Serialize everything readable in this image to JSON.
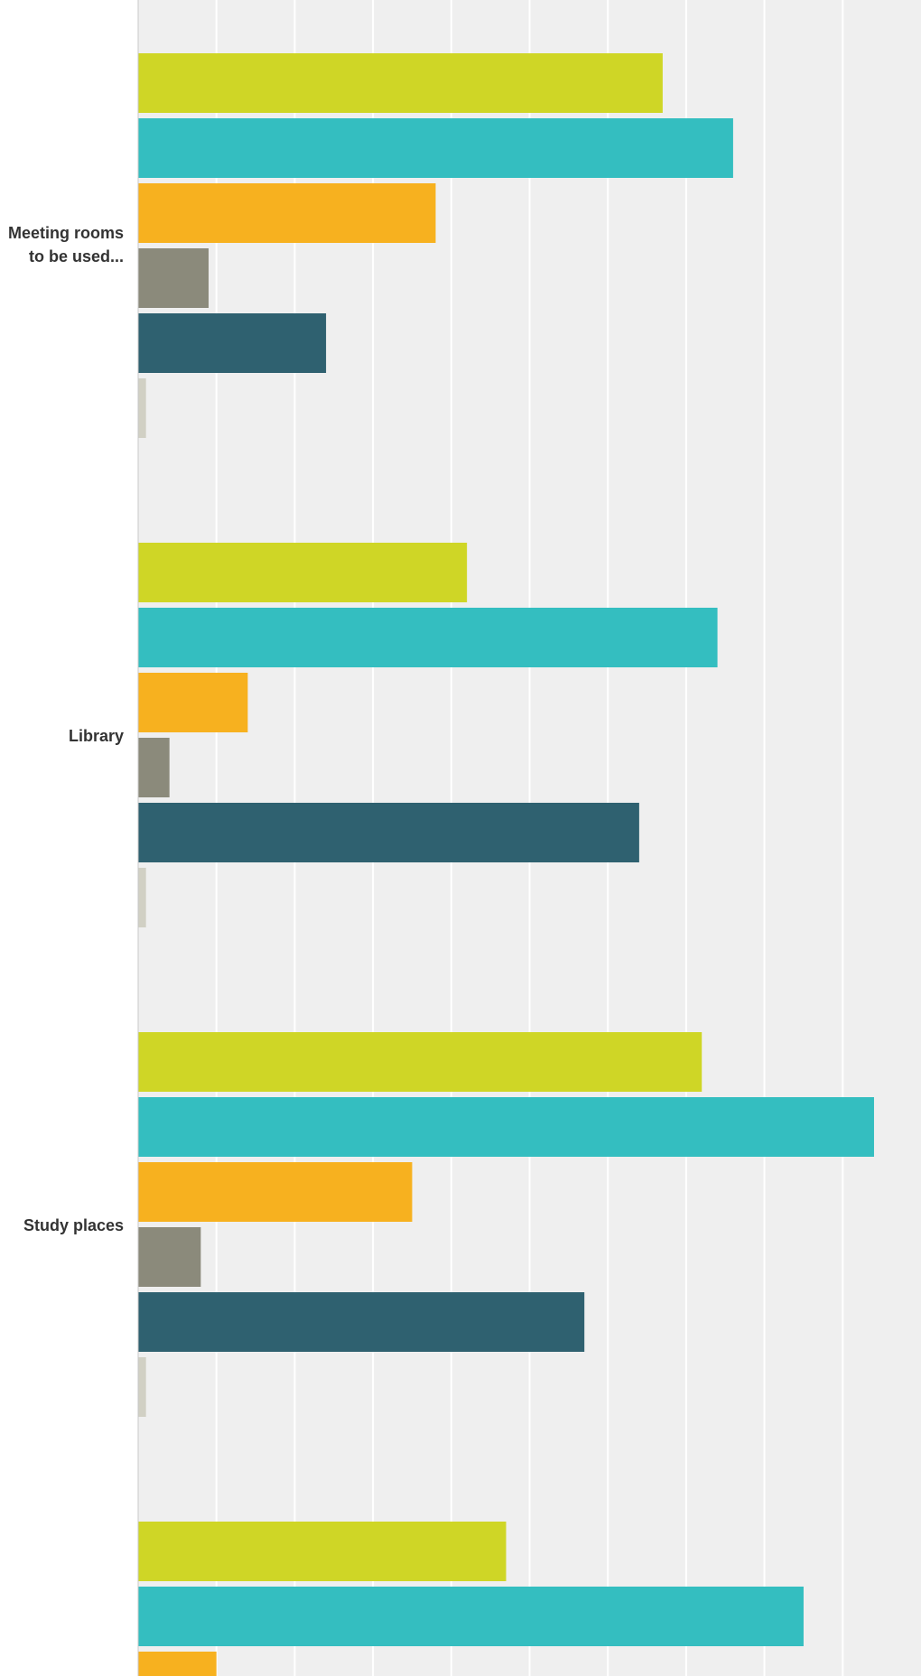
{
  "chart_data": {
    "type": "bar",
    "orientation": "horizontal",
    "categories": [
      "Meeting rooms to be used...",
      "Library",
      "Study places",
      ""
    ],
    "category_lines": [
      [
        "Meeting rooms",
        "to be used..."
      ],
      [
        "Library"
      ],
      [
        "Study places"
      ],
      [
        ""
      ]
    ],
    "series": [
      {
        "values": [
          67,
          42,
          72,
          47
        ],
        "color": "#cfd626"
      },
      {
        "values": [
          76,
          74,
          94,
          85
        ],
        "color": "#34bec0"
      },
      {
        "values": [
          38,
          14,
          35,
          10
        ],
        "color": "#f7b11f"
      },
      {
        "values": [
          9,
          4,
          8,
          null
        ],
        "color": "#8b8a7b"
      },
      {
        "values": [
          24,
          64,
          57,
          null
        ],
        "color": "#2f6170"
      },
      {
        "values": [
          1,
          1,
          1,
          null
        ],
        "color": "#d1d0c4"
      }
    ],
    "xlim": [
      0,
      100
    ],
    "grid": true,
    "title": "",
    "xlabel": "",
    "ylabel": ""
  }
}
